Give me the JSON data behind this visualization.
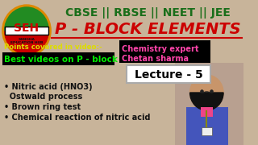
{
  "bg_color": "#c8b49a",
  "title_line1": "CBSE || RBSE || NEET || JEE",
  "title_line2": "P - BLOCK ELEMENTS",
  "title1_color": "#1a6e1a",
  "title2_color": "#cc0000",
  "underline_color": "#cc0000",
  "points_label": "Points covered in video:-",
  "points_label_color": "#dddd00",
  "best_videos_text": "Best videos on P - block",
  "best_videos_color": "#00ee00",
  "best_videos_bg": "#000000",
  "expert_text1": "Chemistry expert",
  "expert_text2": "Chetan sharma",
  "expert_color": "#ff44aa",
  "expert_bg": "#000000",
  "lecture_text": "Lecture - 5",
  "lecture_color": "#000000",
  "lecture_bg": "#ffffff",
  "bullet1": "• Nitric acid (HNO3)",
  "bullet1b": "  Ostwald process",
  "bullet2": "• Brown ring test",
  "bullet3": "• Chemical reaction of nitric acid",
  "bullet_color": "#111111",
  "logo_bg": "#ffffff",
  "logo_text": "SEH",
  "logo_subtext": "SANGHA\nEDUCATION HUB",
  "logo_text_color": "#cc0000",
  "logo_border_top": "#cc0000",
  "logo_border_bot": "#228B22",
  "logo_stripe_mid": "#ffffff"
}
